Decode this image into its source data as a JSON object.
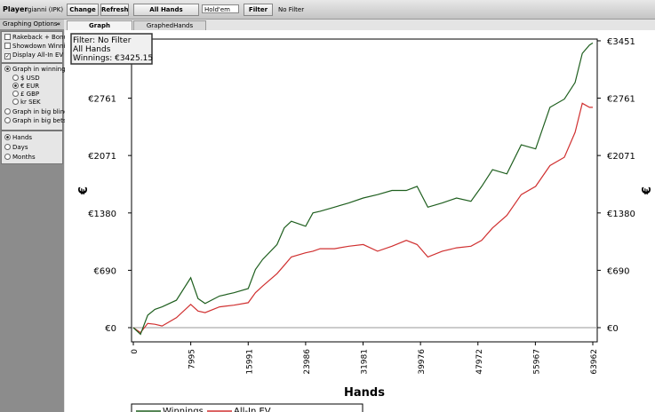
{
  "toolbar": {
    "player_label": "Player",
    "player": "gianni (IPK)",
    "change": "Change",
    "refresh": "Refresh",
    "hands": "All Hands",
    "game": "Hold'em",
    "filter": "Filter",
    "filter_status": "No Filter"
  },
  "tabs": [
    "Graph",
    "GraphedHands"
  ],
  "sidebar": {
    "title": "Graphing Options",
    "collapse": "«",
    "checkboxes": [
      {
        "label": "Rakeback + Bonuses",
        "checked": false
      },
      {
        "label": "Showdown Winnings",
        "checked": false
      },
      {
        "label": "Display All-In EV",
        "checked": true
      }
    ],
    "modes": [
      {
        "label": "Graph in winnings",
        "selected": true
      },
      {
        "label": "Graph in big blinds",
        "selected": false
      },
      {
        "label": "Graph in big bets",
        "selected": false
      }
    ],
    "currencies": [
      {
        "label": "$ USD",
        "selected": false
      },
      {
        "label": "€ EUR",
        "selected": true
      },
      {
        "label": "£ GBP",
        "selected": false
      },
      {
        "label": "kr SEK",
        "selected": false
      }
    ],
    "periods": [
      {
        "label": "Hands",
        "selected": true
      },
      {
        "label": "Days",
        "selected": false
      },
      {
        "label": "Months",
        "selected": false
      }
    ]
  },
  "chart_data": {
    "type": "line",
    "xlabel": "Hands",
    "ylabel": "€",
    "annotations": [
      "Filter: No Filter",
      "All Hands",
      "Winnings: €3425.15"
    ],
    "x": [
      0,
      1000,
      2000,
      3000,
      4000,
      6000,
      7995,
      9000,
      10000,
      12000,
      14000,
      16000,
      17000,
      18000,
      20000,
      21000,
      22000,
      23986,
      25000,
      26000,
      28000,
      30000,
      32000,
      34000,
      36000,
      38000,
      39500,
      41000,
      43000,
      45000,
      47000,
      48500,
      50000,
      52000,
      54000,
      56000,
      58000,
      60000,
      61500,
      62500,
      63500,
      63962
    ],
    "series": [
      {
        "name": "Winnings",
        "color": "#1f5f1f",
        "values": [
          0,
          -80,
          150,
          220,
          250,
          330,
          600,
          350,
          290,
          380,
          420,
          470,
          700,
          820,
          1000,
          1200,
          1280,
          1220,
          1380,
          1400,
          1450,
          1500,
          1560,
          1600,
          1650,
          1650,
          1700,
          1450,
          1500,
          1560,
          1520,
          1700,
          1900,
          1850,
          2200,
          2150,
          2650,
          2750,
          2950,
          3300,
          3400,
          3425
        ]
      },
      {
        "name": "All-In EV",
        "color": "#d03030",
        "values": [
          0,
          -60,
          50,
          40,
          20,
          120,
          280,
          200,
          180,
          250,
          270,
          300,
          420,
          500,
          650,
          750,
          850,
          900,
          920,
          950,
          950,
          980,
          1000,
          920,
          980,
          1050,
          1000,
          850,
          920,
          960,
          980,
          1050,
          1200,
          1350,
          1600,
          1700,
          1950,
          2050,
          2350,
          2700,
          2650,
          2650
        ]
      }
    ],
    "xlim": [
      -250,
      64580
    ],
    "xticks": [
      0,
      7995,
      15991,
      23986,
      31981,
      39976,
      47972,
      55967,
      63962
    ],
    "ylim": [
      -171,
      3472
    ],
    "yticks": [
      {
        "value": 0,
        "label": "€0"
      },
      {
        "value": 690,
        "label": "€690"
      },
      {
        "value": 1380,
        "label": "€1380"
      },
      {
        "value": 2071,
        "label": "€2071"
      },
      {
        "value": 2761,
        "label": "€2761"
      },
      {
        "value": 3451,
        "label": "€3451"
      }
    ],
    "legend": "bottom",
    "zero_line": true
  }
}
